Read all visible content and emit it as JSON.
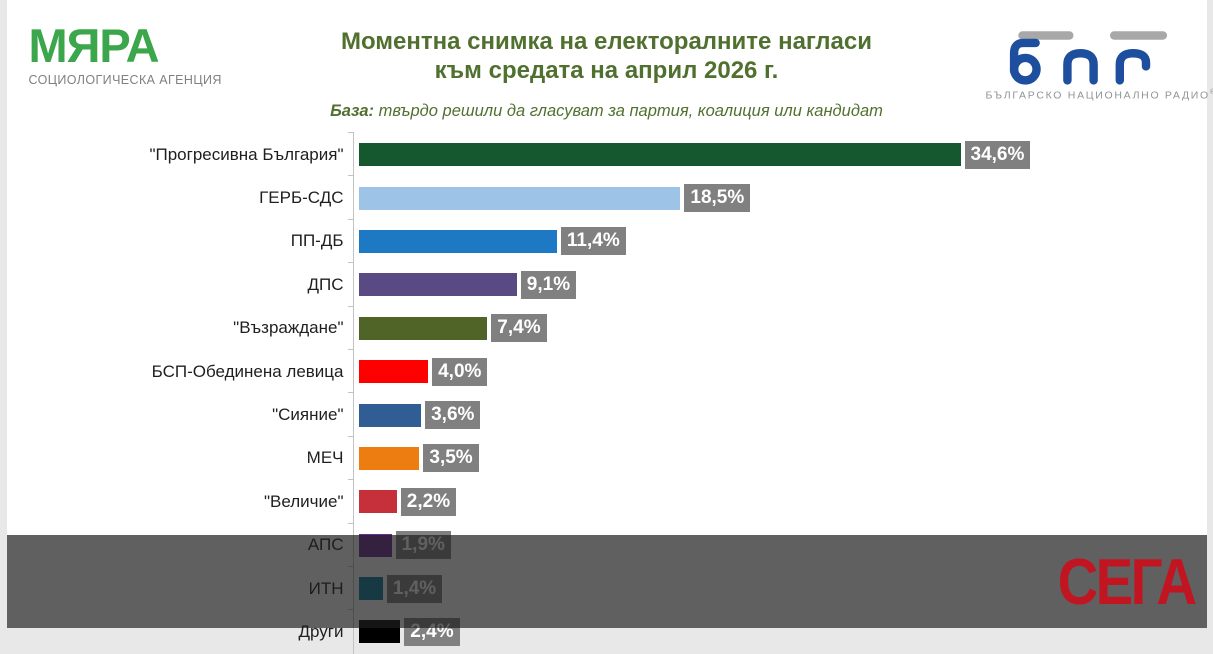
{
  "header": {
    "myara": {
      "name": "МЯРА",
      "tagline": "СОЦИОЛОГИЧЕСКА АГЕНЦИЯ",
      "green": "#3BA64B"
    },
    "title_line1": "Моментна снимка на електоралните нагласи",
    "title_line2": "към средата на април 2026 г.",
    "title_color": "#50702F",
    "base_label": "База:",
    "base_text": " твърдо решили да гласуват за партия, коалиция или кандидат",
    "bnr": {
      "caption": "БЪЛГАРСКО НАЦИОНАЛНО РАДИО",
      "mark": "®",
      "blue": "#1D4F9E",
      "gray": "#A8A8A8"
    }
  },
  "chart_data": {
    "type": "bar",
    "orientation": "horizontal",
    "title": "Моментна снимка на електоралните нагласи към средата на април 2026 г.",
    "base_note": "База: твърдо решили да гласуват за партия, коалиция или кандидат",
    "categories": [
      "\"Прогресивна България\"",
      "ГЕРБ-СДС",
      "ПП-ДБ",
      "ДПС",
      "\"Възраждане\"",
      "БСП-Обединена левица",
      "\"Сияние\"",
      "МЕЧ",
      "\"Величие\"",
      "АПС",
      "ИТН",
      "Други"
    ],
    "values": [
      34.6,
      18.5,
      11.4,
      9.1,
      7.4,
      4.0,
      3.6,
      3.5,
      2.2,
      1.9,
      1.4,
      2.4
    ],
    "value_labels": [
      "34,6%",
      "18,5%",
      "11,4%",
      "9,1%",
      "7,4%",
      "4,0%",
      "3,6%",
      "3,5%",
      "2,2%",
      "1,9%",
      "1,4%",
      "2,4%"
    ],
    "bar_colors": [
      "#15572E",
      "#9DC3E6",
      "#1E79C5",
      "#5A4A84",
      "#4F6426",
      "#FF0000",
      "#305E94",
      "#EE7D11",
      "#C5303A",
      "#6A2C92",
      "#0A7DA0",
      "#000000"
    ],
    "value_badge_bg": "#808080",
    "value_text_color": "#FFFFFF",
    "axis_color": "#C3C3C3",
    "xlim": [
      0,
      40
    ],
    "grid": false,
    "legend": false
  },
  "watermark": {
    "label": "СЕГА",
    "color": "#C11622"
  }
}
